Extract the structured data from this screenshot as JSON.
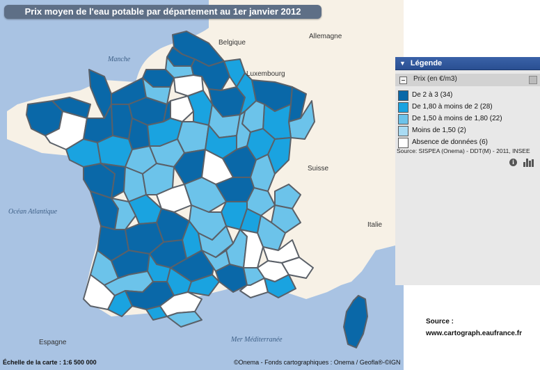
{
  "title": "Prix moyen de l'eau potable par département au 1er janvier 2012",
  "colors": {
    "class_2_3": "#0a68a8",
    "class_180_2": "#1aa3e0",
    "class_150_180": "#6cc3ea",
    "class_lt_150": "#a9dbf3",
    "class_none": "#ffffff",
    "border": "#5a6068",
    "sea": "#a9c3e3",
    "neighbour_land": "#f7f1e6"
  },
  "places": {
    "manche": "Manche",
    "belgique": "Belgique",
    "allemagne": "Allemagne",
    "luxembourg": "Luxembourg",
    "suisse": "Suisse",
    "italie": "Italie",
    "ocean": "Océan Atlantique",
    "mer": "Mer Méditerranée",
    "espagne": "Espagne"
  },
  "scale": "Échelle de la carte : 1:6 500 000",
  "copyright": "©Onema - Fonds cartographiques : Onema / Geofla®-©IGN",
  "legend": {
    "header": "Légende",
    "layer": "Prix (en €/m3)",
    "items": [
      {
        "label": "De 2 à 3 (34)",
        "color": "#0a68a8"
      },
      {
        "label": "De 1,80 à moins de 2 (28)",
        "color": "#1aa3e0"
      },
      {
        "label": "De 1,50 à moins de 1,80 (22)",
        "color": "#6cc3ea"
      },
      {
        "label": "Moins de 1,50 (2)",
        "color": "#a9dbf3"
      },
      {
        "label": "Absence de données (6)",
        "color": "#ffffff"
      }
    ],
    "source": "Source: SISPEA (Onema) - DDT(M) - 2011, INSEE"
  },
  "source_block": {
    "label": "Source :",
    "url": "www.cartograph.eaufrance.fr"
  }
}
